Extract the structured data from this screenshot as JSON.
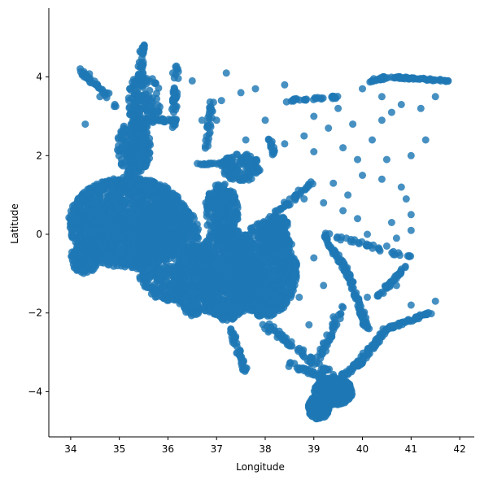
{
  "chart_data": {
    "type": "scatter",
    "title": "",
    "xlabel": "Longitude",
    "ylabel": "Latitude",
    "xlim": [
      33.55,
      42.3
    ],
    "ylim": [
      -5.15,
      5.75
    ],
    "xticks": [
      34,
      35,
      36,
      37,
      38,
      39,
      40,
      41,
      42
    ],
    "yticks": [
      -4,
      -2,
      0,
      2,
      4
    ],
    "grid": false,
    "legend": "none",
    "marker_color": "#1f77b4",
    "spines": [
      "left",
      "bottom"
    ],
    "dense_regions": [
      {
        "cx": 35.2,
        "cy": 0.3,
        "rx": 1.25,
        "ry": 1.15,
        "n": 1600
      },
      {
        "cx": 36.0,
        "cy": -0.4,
        "rx": 0.7,
        "ry": 1.3,
        "n": 700
      },
      {
        "cx": 36.6,
        "cy": -1.2,
        "rx": 0.5,
        "ry": 0.9,
        "n": 350
      },
      {
        "cx": 37.1,
        "cy": 0.6,
        "rx": 0.35,
        "ry": 0.7,
        "n": 250
      },
      {
        "cx": 37.2,
        "cy": -1.0,
        "rx": 0.6,
        "ry": 1.2,
        "n": 800
      },
      {
        "cx": 38.0,
        "cy": -0.9,
        "rx": 0.65,
        "ry": 1.2,
        "n": 900
      },
      {
        "cx": 38.2,
        "cy": 0.1,
        "rx": 0.3,
        "ry": 0.4,
        "n": 150
      },
      {
        "cx": 35.3,
        "cy": 2.2,
        "rx": 0.35,
        "ry": 0.7,
        "n": 220
      },
      {
        "cx": 35.5,
        "cy": 3.4,
        "rx": 0.35,
        "ry": 0.7,
        "n": 120
      },
      {
        "cx": 39.4,
        "cy": -4.0,
        "rx": 0.4,
        "ry": 0.35,
        "n": 500
      },
      {
        "cx": 39.1,
        "cy": -4.4,
        "rx": 0.22,
        "ry": 0.3,
        "n": 260
      },
      {
        "cx": 34.3,
        "cy": -0.6,
        "rx": 0.3,
        "ry": 0.4,
        "n": 150
      },
      {
        "cx": 37.5,
        "cy": 1.7,
        "rx": 0.4,
        "ry": 0.35,
        "n": 120
      }
    ],
    "paths": [
      {
        "from": [
          35.2,
          1.4
        ],
        "to": [
          35.5,
          4.9
        ],
        "n": 110,
        "spread": 0.12
      },
      {
        "from": [
          34.2,
          4.2
        ],
        "to": [
          35.0,
          3.2
        ],
        "n": 40,
        "spread": 0.12
      },
      {
        "from": [
          35.3,
          2.9
        ],
        "to": [
          36.2,
          2.9
        ],
        "n": 40,
        "spread": 0.08
      },
      {
        "from": [
          36.1,
          2.7
        ],
        "to": [
          36.2,
          4.3
        ],
        "n": 40,
        "spread": 0.1
      },
      {
        "from": [
          38.0,
          -2.3
        ],
        "to": [
          39.7,
          -3.9
        ],
        "n": 90,
        "spread": 0.15
      },
      {
        "from": [
          37.3,
          -2.4
        ],
        "to": [
          37.6,
          -3.5
        ],
        "n": 40,
        "spread": 0.1
      },
      {
        "from": [
          38.5,
          -3.3
        ],
        "to": [
          39.3,
          -3.7
        ],
        "n": 40,
        "spread": 0.12
      },
      {
        "from": [
          39.3,
          -3.9
        ],
        "to": [
          40.0,
          -3.2
        ],
        "n": 60,
        "spread": 0.1
      },
      {
        "from": [
          39.9,
          -3.3
        ],
        "to": [
          40.5,
          -2.4
        ],
        "n": 60,
        "spread": 0.1
      },
      {
        "from": [
          40.5,
          -2.4
        ],
        "to": [
          41.4,
          -2.0
        ],
        "n": 50,
        "spread": 0.08
      },
      {
        "from": [
          39.2,
          0.0
        ],
        "to": [
          39.7,
          -1.0
        ],
        "n": 60,
        "spread": 0.1
      },
      {
        "from": [
          39.7,
          -1.0
        ],
        "to": [
          40.1,
          -2.4
        ],
        "n": 70,
        "spread": 0.1
      },
      {
        "from": [
          39.1,
          -3.2
        ],
        "to": [
          39.6,
          -1.8
        ],
        "n": 40,
        "spread": 0.12
      },
      {
        "from": [
          40.3,
          -1.6
        ],
        "to": [
          40.9,
          -0.8
        ],
        "n": 40,
        "spread": 0.08
      },
      {
        "from": [
          38.2,
          0.5
        ],
        "to": [
          39.0,
          1.4
        ],
        "n": 40,
        "spread": 0.1
      },
      {
        "from": [
          38.2,
          2.0
        ],
        "to": [
          38.1,
          2.4
        ],
        "n": 15,
        "spread": 0.08
      },
      {
        "from": [
          36.6,
          1.8
        ],
        "to": [
          37.3,
          1.8
        ],
        "n": 30,
        "spread": 0.06
      },
      {
        "from": [
          38.4,
          3.4
        ],
        "to": [
          39.5,
          3.5
        ],
        "n": 30,
        "spread": 0.08
      },
      {
        "from": [
          40.6,
          4.0
        ],
        "to": [
          41.8,
          3.9
        ],
        "n": 55,
        "spread": 0.05
      },
      {
        "from": [
          40.1,
          3.9
        ],
        "to": [
          40.6,
          4.0
        ],
        "n": 20,
        "spread": 0.08
      },
      {
        "from": [
          39.3,
          0.0
        ],
        "to": [
          41.0,
          -0.6
        ],
        "n": 35,
        "spread": 0.1
      },
      {
        "from": [
          36.8,
          2.2
        ],
        "to": [
          36.9,
          3.4
        ],
        "n": 30,
        "spread": 0.08
      }
    ],
    "scattered_points": [
      [
        36.1,
        4.1
      ],
      [
        37.2,
        4.1
      ],
      [
        37.5,
        3.6
      ],
      [
        38.4,
        3.8
      ],
      [
        38.8,
        2.5
      ],
      [
        39.0,
        2.1
      ],
      [
        39.5,
        3.2
      ],
      [
        39.8,
        2.8
      ],
      [
        40.2,
        2.4
      ],
      [
        40.4,
        2.9
      ],
      [
        40.8,
        3.3
      ],
      [
        41.2,
        3.2
      ],
      [
        41.5,
        3.5
      ],
      [
        40.6,
        3.1
      ],
      [
        39.9,
        1.9
      ],
      [
        40.5,
        1.9
      ],
      [
        40.8,
        1.2
      ],
      [
        40.9,
        0.9
      ],
      [
        41.0,
        0.5
      ],
      [
        40.6,
        0.3
      ],
      [
        40.1,
        0.0
      ],
      [
        40.5,
        -0.3
      ],
      [
        40.7,
        -0.1
      ],
      [
        41.0,
        0.1
      ],
      [
        39.4,
        1.3
      ],
      [
        39.7,
        1.0
      ],
      [
        39.6,
        0.6
      ],
      [
        39.9,
        0.4
      ],
      [
        38.5,
        -0.2
      ],
      [
        38.8,
        0.9
      ],
      [
        39.2,
        0.8
      ],
      [
        38.7,
        -1.6
      ],
      [
        39.0,
        -0.6
      ],
      [
        39.5,
        -0.6
      ],
      [
        39.2,
        -1.3
      ],
      [
        40.1,
        -1.6
      ],
      [
        41.5,
        -1.7
      ],
      [
        41.0,
        -1.8
      ],
      [
        40.7,
        -1.3
      ],
      [
        39.4,
        -2.1
      ],
      [
        38.9,
        -2.3
      ],
      [
        37.8,
        3.7
      ],
      [
        37.1,
        3.4
      ],
      [
        37.0,
        2.9
      ],
      [
        37.6,
        2.4
      ],
      [
        38.0,
        2.9
      ],
      [
        38.4,
        2.3
      ],
      [
        39.6,
        2.2
      ],
      [
        40.0,
        3.7
      ],
      [
        40.4,
        3.5
      ],
      [
        41.0,
        2.0
      ],
      [
        41.3,
        2.4
      ],
      [
        34.3,
        2.8
      ],
      [
        34.6,
        3.5
      ],
      [
        36.5,
        3.9
      ],
      [
        36.7,
        2.9
      ],
      [
        39.0,
        3.0
      ],
      [
        39.3,
        2.7
      ],
      [
        40.0,
        1.5
      ],
      [
        40.4,
        1.4
      ]
    ]
  }
}
